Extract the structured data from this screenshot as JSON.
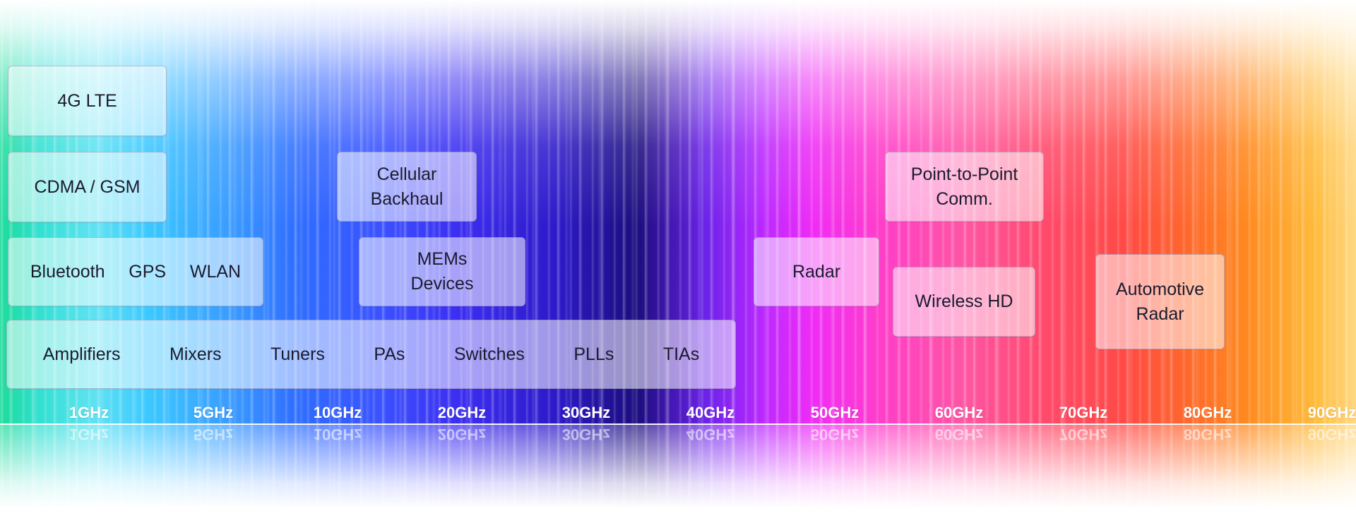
{
  "boxes": {
    "lte": "4G LTE",
    "cdma_gsm": "CDMA / GSM",
    "connectivity": [
      "Bluetooth",
      "GPS",
      "WLAN"
    ],
    "components": [
      "Amplifiers",
      "Mixers",
      "Tuners",
      "PAs",
      "Switches",
      "PLLs",
      "TIAs"
    ],
    "cellular_backhaul": [
      "Cellular",
      "Backhaul"
    ],
    "mems": [
      "MEMs",
      "Devices"
    ],
    "radar": "Radar",
    "point_to_point": [
      "Point-to-Point",
      "Comm."
    ],
    "wireless_hd": "Wireless HD",
    "automotive_radar": [
      "Automotive",
      "Radar"
    ]
  },
  "frequency_axis": [
    "1GHz",
    "5GHz",
    "10GHz",
    "20GHz",
    "30GHz",
    "40GHz",
    "50GHz",
    "60GHz",
    "70GHz",
    "80GHz",
    "90GHz"
  ],
  "colors": {
    "spectrum_start": "#1ddb9a",
    "spectrum_blue": "#2f6dff",
    "spectrum_indigo": "#1c0d7d",
    "spectrum_magenta": "#f02cf5",
    "spectrum_red": "#ff4a45",
    "spectrum_end": "#ffd883"
  }
}
